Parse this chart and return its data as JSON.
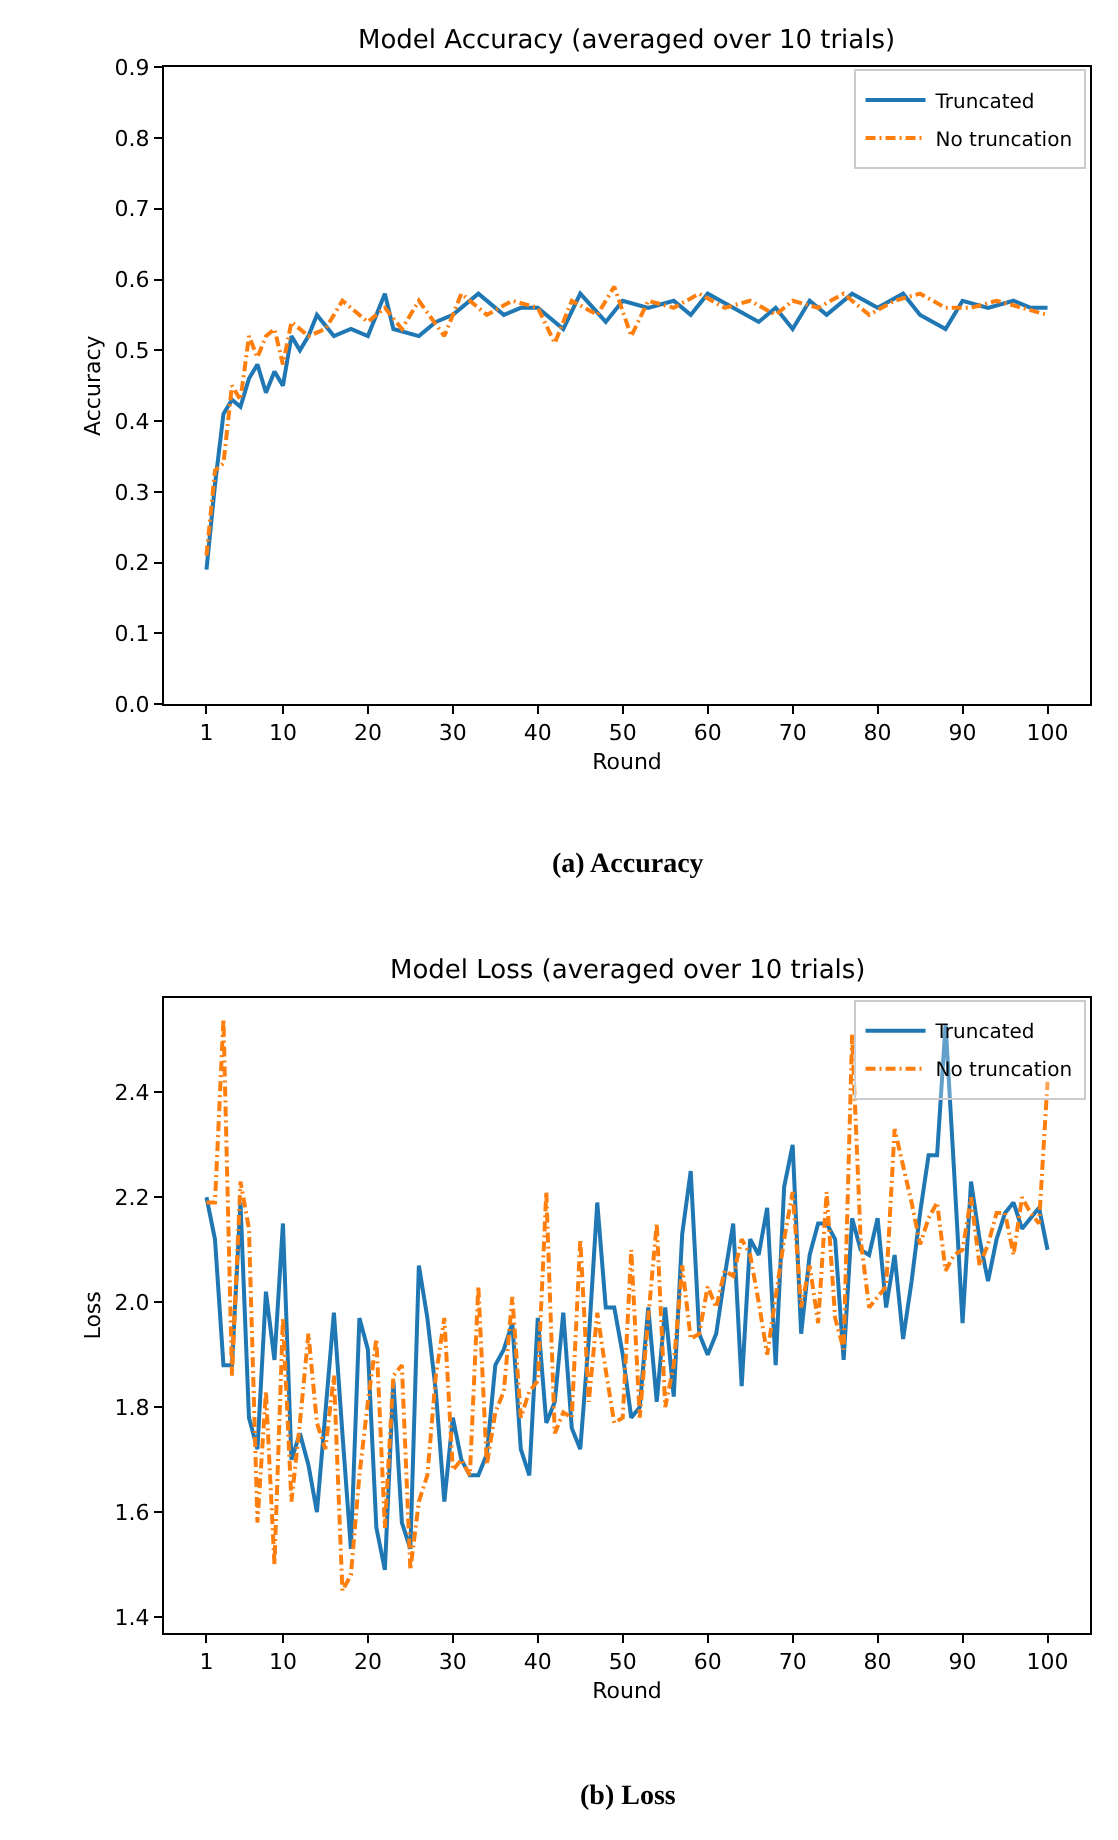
{
  "chart_data": [
    {
      "type": "line",
      "title": "Model Accuracy (averaged over 10 trials)",
      "xlabel": "Round",
      "ylabel": "Accuracy",
      "annotations": [
        "(a) Accuracy"
      ],
      "xlim": [
        -4,
        105
      ],
      "xticks": [
        1,
        10,
        20,
        30,
        40,
        50,
        60,
        70,
        80,
        90,
        100
      ],
      "ylim": [
        0,
        0.9
      ],
      "yticks": [
        {
          "value": 0,
          "label": "0.0"
        },
        0.1,
        0.2,
        0.3,
        0.4,
        0.5,
        0.6,
        0.7,
        0.8,
        0.9
      ],
      "legend": "top right",
      "series": [
        {
          "name": "Truncated",
          "color": "#1f77b4",
          "line_style": "solid",
          "x": [
            1,
            2,
            3,
            4,
            5,
            6,
            7,
            8,
            9,
            10,
            11,
            12,
            13,
            14,
            16,
            18,
            20,
            22,
            23,
            26,
            28,
            30,
            33,
            36,
            38,
            40,
            43,
            45,
            48,
            50,
            53,
            56,
            58,
            60,
            63,
            66,
            68,
            70,
            72,
            74,
            77,
            80,
            83,
            85,
            88,
            90,
            93,
            96,
            98,
            100
          ],
          "values": [
            0.19,
            0.31,
            0.41,
            0.43,
            0.42,
            0.46,
            0.48,
            0.44,
            0.47,
            0.45,
            0.52,
            0.5,
            0.52,
            0.55,
            0.52,
            0.53,
            0.52,
            0.58,
            0.53,
            0.52,
            0.54,
            0.55,
            0.58,
            0.55,
            0.56,
            0.56,
            0.53,
            0.58,
            0.54,
            0.57,
            0.56,
            0.57,
            0.55,
            0.58,
            0.56,
            0.54,
            0.56,
            0.53,
            0.57,
            0.55,
            0.58,
            0.56,
            0.58,
            0.55,
            0.53,
            0.57,
            0.56,
            0.57,
            0.56,
            0.56
          ]
        },
        {
          "name": "No truncation",
          "color": "#ff7f0e",
          "line_style": "dashdot",
          "x": [
            1,
            2,
            3,
            4,
            5,
            6,
            7,
            8,
            9,
            10,
            11,
            13,
            15,
            17,
            20,
            22,
            24,
            26,
            29,
            31,
            34,
            37,
            40,
            42,
            44,
            47,
            49,
            51,
            53,
            56,
            59,
            62,
            65,
            68,
            70,
            73,
            76,
            79,
            82,
            85,
            88,
            91,
            94,
            97,
            100
          ],
          "values": [
            0.21,
            0.33,
            0.34,
            0.45,
            0.43,
            0.52,
            0.49,
            0.52,
            0.53,
            0.48,
            0.54,
            0.52,
            0.53,
            0.57,
            0.54,
            0.56,
            0.53,
            0.57,
            0.52,
            0.58,
            0.55,
            0.57,
            0.56,
            0.51,
            0.57,
            0.55,
            0.59,
            0.52,
            0.57,
            0.56,
            0.58,
            0.56,
            0.57,
            0.55,
            0.57,
            0.56,
            0.58,
            0.55,
            0.57,
            0.58,
            0.56,
            0.56,
            0.57,
            0.56,
            0.55
          ]
        }
      ]
    },
    {
      "type": "line",
      "title": "Model Loss (averaged over 10 trials)",
      "xlabel": "Round",
      "ylabel": "Loss",
      "annotations": [
        "(b) Loss"
      ],
      "xlim": [
        -4,
        105
      ],
      "xticks": [
        1,
        10,
        20,
        30,
        40,
        50,
        60,
        70,
        80,
        90,
        100
      ],
      "ylim": [
        1.37,
        2.58
      ],
      "yticks": [
        1.4,
        1.6,
        1.8,
        {
          "value": 2,
          "label": "2.0"
        },
        2.2,
        2.4
      ],
      "legend": "top right",
      "series": [
        {
          "name": "Truncated",
          "color": "#1f77b4",
          "line_style": "solid",
          "x": [
            1,
            2,
            3,
            4,
            5,
            6,
            7,
            8,
            9,
            10,
            11,
            12,
            13,
            14,
            15,
            16,
            17,
            18,
            19,
            20,
            21,
            22,
            23,
            24,
            25,
            26,
            27,
            28,
            29,
            30,
            31,
            32,
            33,
            34,
            35,
            36,
            37,
            38,
            39,
            40,
            41,
            42,
            43,
            44,
            45,
            46,
            47,
            48,
            49,
            50,
            51,
            52,
            53,
            54,
            55,
            56,
            57,
            58,
            59,
            60,
            61,
            62,
            63,
            64,
            65,
            66,
            67,
            68,
            69,
            70,
            71,
            72,
            73,
            74,
            75,
            76,
            77,
            78,
            79,
            80,
            81,
            82,
            83,
            84,
            85,
            86,
            87,
            88,
            89,
            90,
            91,
            92,
            93,
            94,
            95,
            96,
            97,
            98,
            99,
            100
          ],
          "values": [
            2.2,
            2.12,
            1.88,
            1.88,
            2.19,
            1.78,
            1.72,
            2.02,
            1.89,
            2.15,
            1.7,
            1.75,
            1.69,
            1.6,
            1.79,
            1.98,
            1.75,
            1.53,
            1.97,
            1.91,
            1.57,
            1.49,
            1.85,
            1.58,
            1.53,
            2.07,
            1.97,
            1.83,
            1.62,
            1.78,
            1.7,
            1.67,
            1.67,
            1.71,
            1.88,
            1.91,
            1.96,
            1.72,
            1.67,
            1.97,
            1.77,
            1.81,
            1.98,
            1.76,
            1.72,
            1.93,
            2.19,
            1.99,
            1.99,
            1.9,
            1.78,
            1.8,
            1.99,
            1.81,
            1.99,
            1.82,
            2.13,
            2.25,
            1.94,
            1.9,
            1.94,
            2.05,
            2.15,
            1.84,
            2.12,
            2.09,
            2.18,
            1.88,
            2.22,
            2.3,
            1.94,
            2.09,
            2.15,
            2.15,
            2.12,
            1.89,
            2.16,
            2.1,
            2.09,
            2.16,
            1.99,
            2.09,
            1.93,
            2.04,
            2.17,
            2.28,
            2.28,
            2.53,
            2.25,
            1.96,
            2.23,
            2.12,
            2.04,
            2.12,
            2.17,
            2.19,
            2.14,
            2.16,
            2.18,
            2.1
          ]
        },
        {
          "name": "No truncation",
          "color": "#ff7f0e",
          "line_style": "dashdot",
          "x": [
            1,
            2,
            3,
            4,
            5,
            6,
            7,
            8,
            9,
            10,
            11,
            12,
            13,
            14,
            15,
            16,
            17,
            18,
            19,
            20,
            21,
            22,
            23,
            24,
            25,
            26,
            27,
            28,
            29,
            30,
            31,
            32,
            33,
            34,
            35,
            36,
            37,
            38,
            39,
            40,
            41,
            42,
            43,
            44,
            45,
            46,
            47,
            48,
            49,
            50,
            51,
            52,
            53,
            54,
            55,
            56,
            57,
            58,
            59,
            60,
            61,
            62,
            63,
            64,
            65,
            66,
            67,
            68,
            69,
            70,
            71,
            72,
            73,
            74,
            75,
            76,
            77,
            78,
            79,
            80,
            81,
            82,
            83,
            84,
            85,
            86,
            87,
            88,
            89,
            90,
            91,
            92,
            93,
            94,
            95,
            96,
            97,
            98,
            99,
            100
          ],
          "values": [
            2.19,
            2.19,
            2.54,
            1.86,
            2.23,
            2.14,
            1.58,
            1.83,
            1.5,
            1.97,
            1.62,
            1.77,
            1.94,
            1.77,
            1.72,
            1.86,
            1.45,
            1.48,
            1.67,
            1.81,
            1.93,
            1.57,
            1.86,
            1.88,
            1.49,
            1.62,
            1.67,
            1.86,
            1.97,
            1.68,
            1.7,
            1.67,
            2.03,
            1.69,
            1.79,
            1.83,
            2.01,
            1.78,
            1.83,
            1.85,
            2.21,
            1.75,
            1.79,
            1.78,
            2.12,
            1.81,
            1.98,
            1.87,
            1.77,
            1.78,
            2.1,
            1.78,
            1.97,
            2.15,
            1.8,
            1.88,
            2.07,
            1.93,
            1.94,
            2.03,
            1.99,
            2.06,
            2.05,
            2.12,
            2.09,
            2.0,
            1.9,
            2.01,
            2.12,
            2.21,
            1.99,
            2.07,
            1.96,
            2.21,
            1.97,
            1.91,
            2.51,
            2.12,
            1.99,
            2.01,
            2.03,
            2.33,
            2.26,
            2.19,
            2.11,
            2.16,
            2.19,
            2.06,
            2.09,
            2.1,
            2.2,
            2.07,
            2.11,
            2.17,
            2.17,
            2.09,
            2.2,
            2.17,
            2.15,
            2.42
          ]
        }
      ]
    }
  ]
}
